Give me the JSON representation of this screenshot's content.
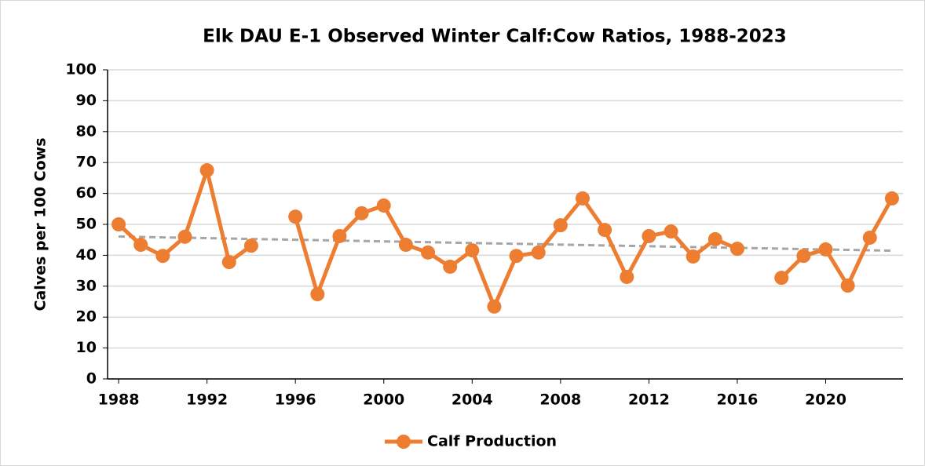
{
  "chart_data": {
    "type": "line",
    "title": "Elk DAU E-1 Observed Winter Calf:Cow Ratios, 1988-2023",
    "y_label": "Calves per 100 Cows",
    "x": [
      1988,
      1989,
      1990,
      1991,
      1992,
      1993,
      1994,
      1995,
      1996,
      1997,
      1998,
      1999,
      2000,
      2001,
      2002,
      2003,
      2004,
      2005,
      2006,
      2007,
      2008,
      2009,
      2010,
      2011,
      2012,
      2013,
      2014,
      2015,
      2016,
      2017,
      2018,
      2019,
      2020,
      2021,
      2022,
      2023
    ],
    "series": [
      {
        "name": "Calf Production",
        "color": "#ed7d31",
        "values": [
          50,
          43.4,
          39.8,
          46,
          67.5,
          37.8,
          43.1,
          null,
          52.5,
          27.4,
          46.2,
          53.6,
          56.1,
          43.4,
          40.9,
          36.3,
          41.6,
          23.4,
          39.8,
          40.9,
          49.7,
          58.4,
          48.2,
          33,
          46.2,
          47.7,
          39.6,
          45.2,
          42.1,
          null,
          32.7,
          39.8,
          41.9,
          30.2,
          45.7,
          58.4
        ]
      }
    ],
    "trendline": {
      "color": "#a6a6a6"
    },
    "xlim": [
      1987.5,
      2023.5
    ],
    "xticks": [
      1988,
      1992,
      1996,
      2000,
      2004,
      2008,
      2012,
      2016,
      2020
    ],
    "ylim": [
      0,
      100
    ],
    "yticks": [
      0,
      10,
      20,
      30,
      40,
      50,
      60,
      70,
      80,
      90,
      100
    ],
    "grid": true,
    "legend": "bottom"
  }
}
